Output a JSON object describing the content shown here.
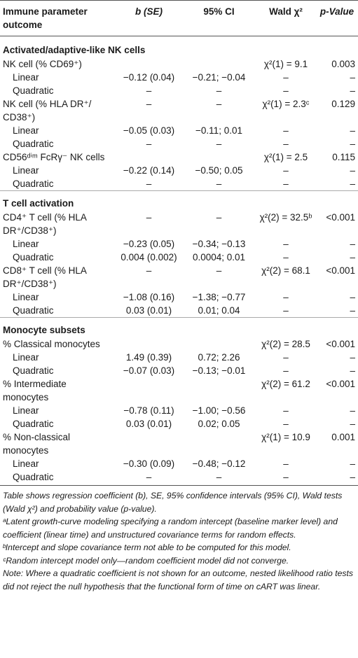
{
  "header": {
    "col0": "Immune parameter outcome",
    "col1": "b (SE)",
    "col2": "95% CI",
    "col3": "Wald χ²",
    "col4": "p-Value"
  },
  "sections": [
    {
      "title": "Activated/adaptive-like NK cells",
      "outcomes": [
        {
          "name": "NK cell (% CD69⁺)",
          "b": "",
          "ci": "",
          "wald": "χ²(1) = 9.1",
          "p": "0.003",
          "linear": {
            "b": "−0.12 (0.04)",
            "ci": "−0.21; −0.04",
            "wald": "–",
            "p": "–"
          },
          "quadratic": {
            "b": "–",
            "ci": "–",
            "wald": "–",
            "p": "–"
          }
        },
        {
          "name": "NK cell (% HLA DR⁺/ CD38⁺)",
          "b": "–",
          "ci": "–",
          "wald": "χ²(1) = 2.3ᶜ",
          "p": "0.129",
          "linear": {
            "b": "−0.05 (0.03)",
            "ci": "−0.11; 0.01",
            "wald": "–",
            "p": "–"
          },
          "quadratic": {
            "b": "–",
            "ci": "–",
            "wald": "–",
            "p": "–"
          }
        },
        {
          "name": "CD56ᵈⁱᵐ FcRγ⁻ NK cells",
          "b": "",
          "ci": "",
          "wald": "χ²(1) = 2.5",
          "p": "0.115",
          "linear": {
            "b": "−0.22 (0.14)",
            "ci": "−0.50; 0.05",
            "wald": "–",
            "p": "–"
          },
          "quadratic": {
            "b": "–",
            "ci": "–",
            "wald": "–",
            "p": "–"
          }
        }
      ]
    },
    {
      "title": "T cell activation",
      "outcomes": [
        {
          "name": "CD4⁺ T cell (% HLA DR⁺/CD38⁺)",
          "b": "–",
          "ci": "–",
          "wald": "χ²(2) = 32.5ᵇ",
          "p": "<0.001",
          "linear": {
            "b": "−0.23 (0.05)",
            "ci": "−0.34; −0.13",
            "wald": "–",
            "p": "–"
          },
          "quadratic": {
            "b": "0.004 (0.002)",
            "ci": "0.0004; 0.01",
            "wald": "–",
            "p": "–"
          }
        },
        {
          "name": "CD8⁺ T cell (% HLA DR⁺/CD38⁺)",
          "b": "–",
          "ci": "–",
          "wald": "χ²(2) = 68.1",
          "p": "<0.001",
          "linear": {
            "b": "−1.08 (0.16)",
            "ci": "−1.38; −0.77",
            "wald": "–",
            "p": "–"
          },
          "quadratic": {
            "b": "0.03 (0.01)",
            "ci": "0.01; 0.04",
            "wald": "–",
            "p": "–"
          }
        }
      ]
    },
    {
      "title": "Monocyte subsets",
      "outcomes": [
        {
          "name": "% Classical monocytes",
          "b": "",
          "ci": "",
          "wald": "χ²(2) = 28.5",
          "p": "<0.001",
          "linear": {
            "b": "1.49 (0.39)",
            "ci": "0.72; 2.26",
            "wald": "–",
            "p": "–"
          },
          "quadratic": {
            "b": "−0.07 (0.03)",
            "ci": "−0.13; −0.01",
            "wald": "–",
            "p": "–"
          }
        },
        {
          "name": "% Intermediate monocytes",
          "b": "",
          "ci": "",
          "wald": "χ²(2) = 61.2",
          "p": "<0.001",
          "linear": {
            "b": "−0.78 (0.11)",
            "ci": "−1.00; −0.56",
            "wald": "–",
            "p": "–"
          },
          "quadratic": {
            "b": "0.03 (0.01)",
            "ci": "0.02; 0.05",
            "wald": "–",
            "p": "–"
          }
        },
        {
          "name": "% Non-classical monocytes",
          "b": "",
          "ci": "",
          "wald": "χ²(1) = 10.9",
          "p": "0.001",
          "linear": {
            "b": "−0.30 (0.09)",
            "ci": "−0.48; −0.12",
            "wald": "–",
            "p": "–"
          },
          "quadratic": {
            "b": "–",
            "ci": "–",
            "wald": "–",
            "p": "–"
          }
        }
      ]
    }
  ],
  "row_labels": {
    "linear": "Linear",
    "quadratic": "Quadratic"
  },
  "footnotes": [
    "Table shows regression coefficient (b), SE, 95% confidence intervals (95% CI), Wald tests (Wald χ²) and probability value (p-value).",
    "ᵃLatent growth-curve modeling specifying a random intercept (baseline marker level) and coefficient (linear time) and unstructured covariance terms for random effects.",
    "ᵇIntercept and slope covariance term not able to be computed for this model.",
    "ᶜRandom intercept model only—random coefficient model did not converge.",
    "Note: Where a quadratic coefficient is not shown for an outcome, nested likelihood ratio tests did not reject the null hypothesis that the functional form of time on cART was linear."
  ]
}
